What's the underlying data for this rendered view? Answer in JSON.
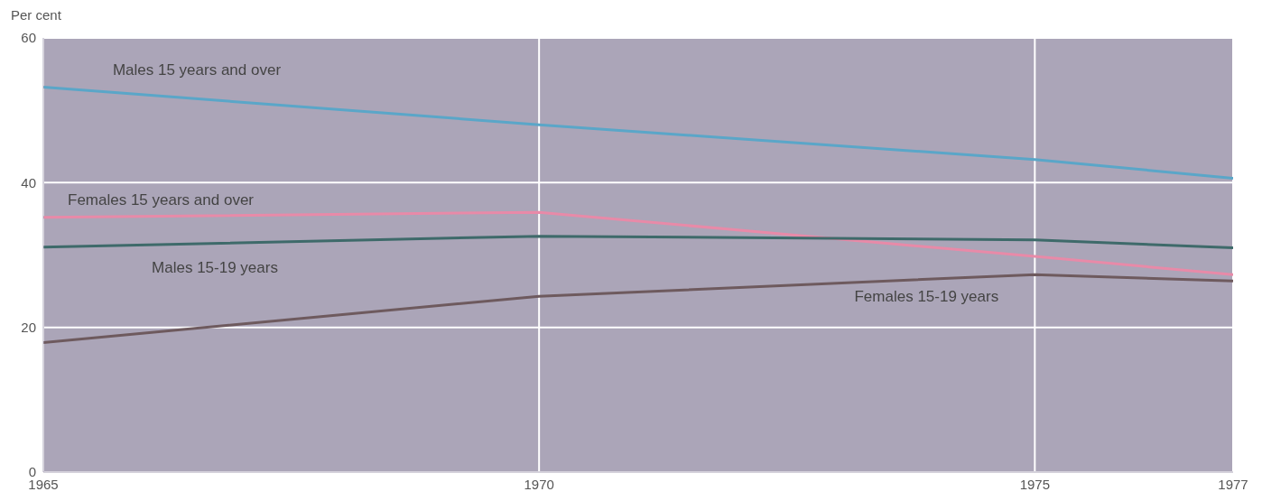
{
  "chart_data": {
    "type": "line",
    "ylabel": "Per cent",
    "x": [
      1965,
      1970,
      1975,
      1977
    ],
    "series": [
      {
        "name": "Males 15 years and over",
        "color": "#5aa6c8",
        "values": [
          53.2,
          48.0,
          43.2,
          40.6
        ]
      },
      {
        "name": "Females 15 years and over",
        "color": "#e88aa8",
        "values": [
          35.2,
          35.9,
          29.8,
          27.3
        ]
      },
      {
        "name": "Males 15-19 years",
        "color": "#3e6a6a",
        "values": [
          31.1,
          32.6,
          32.1,
          31.0
        ]
      },
      {
        "name": "Females 15-19 years",
        "color": "#6e5a5e",
        "values": [
          17.9,
          24.3,
          27.3,
          26.4
        ]
      }
    ],
    "xlim": [
      1965,
      1977
    ],
    "xticks": [
      1965,
      1970,
      1975,
      1977
    ],
    "ylim": [
      0,
      60
    ],
    "yticks": [
      0,
      20,
      40,
      60
    ],
    "grid": true,
    "marker": "none",
    "line_style": "solid"
  }
}
